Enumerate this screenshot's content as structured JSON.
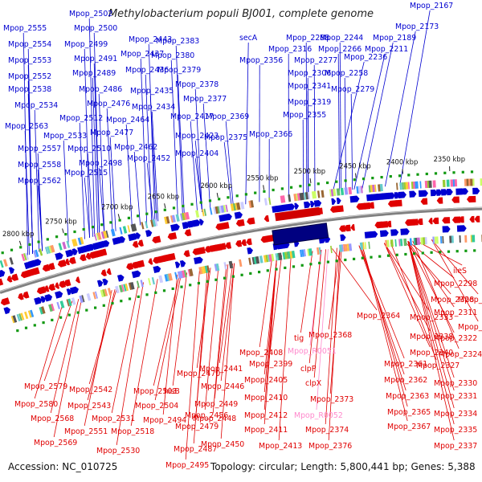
{
  "title": "Methylobacterium populi BJ001, complete genome",
  "footer": {
    "accession": "Accession: NC_010725",
    "summary": "Topology: circular; Length: 5,800,441 bp; Genes: 5,388"
  },
  "colors": {
    "forward": "#0000d0",
    "reverse": "#e00000",
    "rna": "#ff88cc",
    "backbone": "#808080",
    "tick": "#119911"
  },
  "kbp_labels": [
    "2350 kbp",
    "2400 kbp",
    "2450 kbp",
    "2500 kbp",
    "2550 kbp",
    "2600 kbp",
    "2650 kbp",
    "2700 kbp",
    "2750 kbp",
    "2800 kbp"
  ],
  "top_labels": [
    "Mpop_2502",
    "Mpop_2555",
    "Mpop_2500",
    "Mpop_2554",
    "Mpop_2499",
    "Mpop_2553",
    "Mpop_2491",
    "Mpop_2552",
    "Mpop_2489",
    "Mpop_2538",
    "Mpop_2486",
    "Mpop_2534",
    "Mpop_2476",
    "Mpop_2512",
    "Mpop_2563",
    "Mpop_2477",
    "Mpop_2533",
    "Mpop_2510",
    "Mpop_2557",
    "Mpop_2498",
    "Mpop_2558",
    "Mpop_2515",
    "Mpop_2562",
    "Mpop_2443",
    "Mpop_2383",
    "Mpop_2437",
    "Mpop_2380",
    "Mpop_2436",
    "Mpop_2379",
    "Mpop_2378",
    "Mpop_2435",
    "Mpop_2377",
    "Mpop_2434",
    "Mpop_2464",
    "Mpop_2417",
    "Mpop_2369",
    "Mpop_2462",
    "Mpop_2423",
    "Mpop_2375",
    "Mpop_2452",
    "Mpop_2404",
    "secA",
    "Mpop_2288",
    "Mpop_2244",
    "Mpop_2316",
    "Mpop_2266",
    "Mpop_2211",
    "Mpop_2356",
    "Mpop_2277",
    "Mpop_2236",
    "Mpop_2306",
    "Mpop_2258",
    "Mpop_2341",
    "Mpop_2279",
    "Mpop_2319",
    "Mpop_2355",
    "Mpop_2366",
    "Mpop_2167",
    "Mpop_2173",
    "Mpop_2189"
  ],
  "bottom_labels": [
    "ileS",
    "Mpop_2298",
    "Mpop_2328",
    "Mpop_2303",
    "Mpop_2311",
    "Mpop_2333",
    "Mpop_2313",
    "Mpop_2338",
    "Mpop_2322",
    "Mpop_2364",
    "Mpop_2368",
    "tig",
    "Mpop_2340",
    "Mpop_2324",
    "Mpop_2327",
    "Mpop_2408",
    "Mpop_R0051",
    "Mpop_2361",
    "Mpop_2399",
    "clpP",
    "Mpop_2362",
    "Mpop_2330",
    "Mpop_2405",
    "clpX",
    "Mpop_2363",
    "Mpop_2331",
    "Mpop_2410",
    "Mpop_2373",
    "Mpop_2365",
    "Mpop_2334",
    "Mpop_2412",
    "Mpop_R0052",
    "Mpop_2367",
    "Mpop_2374",
    "Mpop_2335",
    "Mpop_2411",
    "Mpop_2413",
    "Mpop_2376",
    "Mpop_2337",
    "Mpop_2441",
    "Mpop_2446",
    "Mpop_2449",
    "Mpop_2448",
    "Mpop_2450",
    "Mpop_2470",
    "Mpop_2456",
    "Mpop_2479",
    "Mpop_2487",
    "Mpop_2495",
    "Mpop_2503",
    "hisB",
    "Mpop_2504",
    "Mpop_2494",
    "Mpop_2518",
    "Mpop_2530",
    "Mpop_2542",
    "Mpop_2543",
    "Mpop_2531",
    "Mpop_2551",
    "Mpop_2579",
    "Mpop_2580",
    "Mpop_2568",
    "Mpop_2569"
  ]
}
